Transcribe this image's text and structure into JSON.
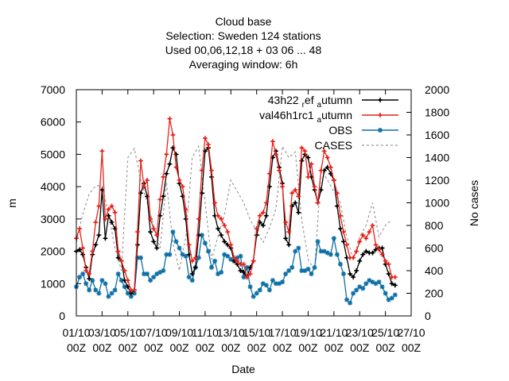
{
  "chart_data": {
    "type": "line",
    "title_lines": [
      "Cloud base",
      "Selection: Sweden    124 stations",
      "Used  00,06,12,18  + 03 06 ... 48",
      "Averaging window:  6h"
    ],
    "xlabel": "Date",
    "ylabel": "m",
    "y2label": "No cases",
    "ylim": [
      0,
      7000
    ],
    "y2lim": [
      0,
      2000
    ],
    "yticks": [
      0,
      1000,
      2000,
      3000,
      4000,
      5000,
      6000,
      7000
    ],
    "y2ticks": [
      0,
      200,
      400,
      600,
      800,
      1000,
      1200,
      1400,
      1600,
      1800,
      2000
    ],
    "x_range_days": [
      0,
      26
    ],
    "xticks": [
      {
        "day": 0,
        "line1": "01/10",
        "line2": "00Z"
      },
      {
        "day": 2,
        "line1": "03/10",
        "line2": "00Z"
      },
      {
        "day": 4,
        "line1": "05/10",
        "line2": "00Z"
      },
      {
        "day": 6,
        "line1": "07/10",
        "line2": "00Z"
      },
      {
        "day": 8,
        "line1": "09/10",
        "line2": "00Z"
      },
      {
        "day": 10,
        "line1": "11/10",
        "line2": "00Z"
      },
      {
        "day": 12,
        "line1": "13/10",
        "line2": "00Z"
      },
      {
        "day": 14,
        "line1": "15/10",
        "line2": "00Z"
      },
      {
        "day": 16,
        "line1": "17/10",
        "line2": "00Z"
      },
      {
        "day": 18,
        "line1": "19/10",
        "line2": "00Z"
      },
      {
        "day": 20,
        "line1": "21/10",
        "line2": "00Z"
      },
      {
        "day": 22,
        "line1": "23/10",
        "line2": "00Z"
      },
      {
        "day": 24,
        "line1": "25/10",
        "line2": "00Z"
      },
      {
        "day": 26,
        "line1": "27/10",
        "line2": "00Z"
      }
    ],
    "legend_position": "top-right",
    "step_hours": 6,
    "series": [
      {
        "name_parts": [
          [
            "43h22 ",
            ""
          ],
          [
            "r",
            "sub"
          ],
          [
            "ef ",
            ""
          ],
          [
            "a",
            "sub"
          ],
          [
            "utumn",
            ""
          ]
        ],
        "color": "#000000",
        "marker": "plus",
        "axis": "y",
        "x_days": [
          0,
          0.25,
          0.5,
          0.75,
          1,
          1.25,
          1.5,
          1.75,
          2,
          2.25,
          2.5,
          2.75,
          3,
          3.25,
          3.5,
          3.75,
          4,
          4.25,
          4.5,
          4.75,
          5,
          5.25,
          5.5,
          5.75,
          6,
          6.25,
          6.5,
          6.75,
          7,
          7.25,
          7.5,
          7.75,
          8,
          8.25,
          8.5,
          8.75,
          9,
          9.25,
          9.5,
          9.75,
          10,
          10.25,
          10.5,
          10.75,
          11,
          11.25,
          11.5,
          11.75,
          12,
          12.25,
          12.5,
          12.75,
          13,
          13.25,
          13.5,
          13.75,
          14,
          14.25,
          14.5,
          14.75,
          15,
          15.25,
          15.5,
          15.75,
          16,
          16.25,
          16.5,
          16.75,
          17,
          17.25,
          17.5,
          17.75,
          18,
          18.25,
          18.5,
          18.75,
          19,
          19.25,
          19.5,
          19.75,
          20,
          20.25,
          20.5,
          20.75,
          21,
          21.25,
          21.5,
          21.75,
          22,
          22.25,
          22.5,
          22.75,
          23,
          23.25,
          23.5,
          23.75,
          24,
          24.25,
          24.5,
          24.75
        ],
        "values": [
          2000,
          2050,
          1900,
          1500,
          1150,
          1900,
          2200,
          2500,
          3900,
          2400,
          3100,
          2900,
          2700,
          1800,
          1700,
          1100,
          900,
          700,
          800,
          2200,
          3800,
          4100,
          3700,
          2600,
          2300,
          2100,
          3100,
          3700,
          4400,
          4700,
          5200,
          5000,
          4100,
          3700,
          3000,
          1900,
          1300,
          1500,
          2500,
          3800,
          5100,
          5200,
          4300,
          3100,
          2700,
          2500,
          2300,
          2200,
          2100,
          1700,
          1600,
          1400,
          1350,
          1200,
          1500,
          1700,
          2500,
          2900,
          2800,
          3100,
          4000,
          4900,
          5100,
          4600,
          4100,
          2400,
          2200,
          3400,
          3500,
          3200,
          4800,
          5000,
          4900,
          4300,
          3900,
          3500,
          3900,
          4500,
          4600,
          4400,
          4200,
          3400,
          2700,
          2300,
          1800,
          1300,
          1200,
          1400,
          1700,
          1900,
          2000,
          1950,
          1950,
          2050,
          2100,
          2100,
          1600,
          1300,
          1000,
          950
        ]
      },
      {
        "name_parts": [
          [
            "val46h1rc1 ",
            ""
          ],
          [
            "a",
            "sub"
          ],
          [
            "utumn",
            ""
          ]
        ],
        "color": "#e8231c",
        "marker": "plus",
        "axis": "y",
        "x_days": [
          0,
          0.25,
          0.5,
          0.75,
          1,
          1.25,
          1.5,
          1.75,
          2,
          2.25,
          2.5,
          2.75,
          3,
          3.25,
          3.5,
          3.75,
          4,
          4.25,
          4.5,
          4.75,
          5,
          5.25,
          5.5,
          5.75,
          6,
          6.25,
          6.5,
          6.75,
          7,
          7.25,
          7.5,
          7.75,
          8,
          8.25,
          8.5,
          8.75,
          9,
          9.25,
          9.5,
          9.75,
          10,
          10.25,
          10.5,
          10.75,
          11,
          11.25,
          11.5,
          11.75,
          12,
          12.25,
          12.5,
          12.75,
          13,
          13.25,
          13.5,
          13.75,
          14,
          14.25,
          14.5,
          14.75,
          15,
          15.25,
          15.5,
          15.75,
          16,
          16.25,
          16.5,
          16.75,
          17,
          17.25,
          17.5,
          17.75,
          18,
          18.25,
          18.5,
          18.75,
          19,
          19.25,
          19.5,
          19.75,
          20,
          20.25,
          20.5,
          20.75,
          21,
          21.25,
          21.5,
          21.75,
          22,
          22.25,
          22.5,
          22.75,
          23,
          23.25,
          23.5,
          23.75,
          24,
          24.25,
          24.5,
          24.75
        ],
        "values": [
          2400,
          2700,
          2100,
          1400,
          1300,
          2000,
          2900,
          3400,
          5100,
          3000,
          3300,
          3400,
          3200,
          2000,
          1700,
          1400,
          1100,
          800,
          800,
          2600,
          4800,
          4000,
          4200,
          3000,
          2700,
          2500,
          3600,
          4300,
          5000,
          6100,
          5600,
          4600,
          4200,
          4000,
          3300,
          2200,
          1700,
          1800,
          3000,
          4500,
          5500,
          5300,
          4500,
          3500,
          3100,
          3000,
          2800,
          2600,
          2200,
          1800,
          1700,
          1600,
          1600,
          1200,
          1300,
          1700,
          2700,
          3100,
          3200,
          3500,
          4400,
          5400,
          5000,
          4500,
          4000,
          2900,
          2600,
          3800,
          3900,
          3700,
          5200,
          5100,
          4300,
          4700,
          4000,
          3500,
          4500,
          5100,
          4900,
          4600,
          4200,
          3800,
          3100,
          2600,
          2200,
          1800,
          1800,
          2000,
          2300,
          2500,
          2400,
          2600,
          2800,
          2200,
          2050,
          1900,
          1700,
          1600,
          1200,
          1200
        ]
      },
      {
        "name_parts": [
          [
            "OBS",
            ""
          ]
        ],
        "color": "#0e6fa5",
        "marker": "star",
        "axis": "y",
        "x_days": [
          0,
          0.25,
          0.5,
          0.75,
          1,
          1.25,
          1.5,
          1.75,
          2,
          2.25,
          2.5,
          2.75,
          3,
          3.25,
          3.5,
          3.75,
          4,
          4.25,
          4.5,
          4.75,
          5,
          5.25,
          5.5,
          5.75,
          6,
          6.25,
          6.5,
          6.75,
          7,
          7.25,
          7.5,
          7.75,
          8,
          8.25,
          8.5,
          8.75,
          9,
          9.25,
          9.5,
          9.75,
          10,
          10.25,
          10.5,
          10.75,
          11,
          11.25,
          11.5,
          11.75,
          12,
          12.25,
          12.5,
          12.75,
          13,
          13.25,
          13.5,
          13.75,
          14,
          14.25,
          14.5,
          14.75,
          15,
          15.25,
          15.5,
          15.75,
          16,
          16.25,
          16.5,
          16.75,
          17,
          17.25,
          17.5,
          17.75,
          18,
          18.25,
          18.5,
          18.75,
          19,
          19.25,
          19.5,
          19.75,
          20,
          20.25,
          20.5,
          20.75,
          21,
          21.25,
          21.5,
          21.75,
          22,
          22.25,
          22.5,
          22.75,
          23,
          23.25,
          23.5,
          23.75,
          24,
          24.25,
          24.5,
          24.75
        ],
        "values": [
          900,
          1200,
          1300,
          1000,
          800,
          1100,
          800,
          700,
          1100,
          1000,
          600,
          700,
          800,
          1300,
          1100,
          900,
          700,
          600,
          700,
          1800,
          1800,
          1300,
          1300,
          1100,
          1200,
          1300,
          1350,
          1400,
          1900,
          1900,
          2600,
          2300,
          2100,
          1900,
          1850,
          1200,
          1100,
          1500,
          1800,
          2500,
          2250,
          2000,
          1500,
          1700,
          1300,
          1350,
          1900,
          1850,
          1750,
          1700,
          1800,
          1850,
          1200,
          1500,
          900,
          600,
          700,
          800,
          1000,
          950,
          800,
          1100,
          1000,
          1000,
          1050,
          1300,
          1400,
          1500,
          2000,
          2100,
          1400,
          1400,
          1450,
          1300,
          1500,
          2300,
          2000,
          2000,
          1950,
          1900,
          2400,
          1900,
          1600,
          1300,
          500,
          400,
          700,
          800,
          900,
          850,
          1000,
          1100,
          1050,
          1000,
          1050,
          900,
          700,
          500,
          550,
          650
        ]
      },
      {
        "name_parts": [
          [
            "CASES",
            ""
          ]
        ],
        "color": "#999999",
        "dashed": true,
        "axis": "y2",
        "x_days": [
          0,
          0.5,
          1,
          1.5,
          2,
          2.5,
          3,
          3.5,
          4,
          4.5,
          5,
          5.5,
          6,
          6.5,
          7,
          7.5,
          8,
          8.5,
          9,
          9.5,
          10,
          10.5,
          11,
          11.5,
          12,
          12.5,
          13,
          13.5,
          14,
          14.5,
          15,
          15.5,
          16,
          16.5,
          17,
          17.5,
          18,
          18.5,
          19,
          19.5,
          20,
          20.5,
          21,
          21.5,
          22,
          22.5,
          23,
          23.5,
          24,
          24.5
        ],
        "values": [
          650,
          900,
          1080,
          1150,
          1150,
          900,
          600,
          400,
          1400,
          1480,
          1200,
          1000,
          800,
          600,
          1180,
          650,
          400,
          700,
          1400,
          1500,
          1000,
          500,
          700,
          900,
          1200,
          1100,
          1000,
          850,
          750,
          650,
          780,
          950,
          1500,
          1400,
          1450,
          850,
          500,
          400,
          1300,
          1200,
          1100,
          1000,
          700,
          500,
          700,
          800,
          1000,
          700,
          800,
          850
        ]
      }
    ]
  }
}
